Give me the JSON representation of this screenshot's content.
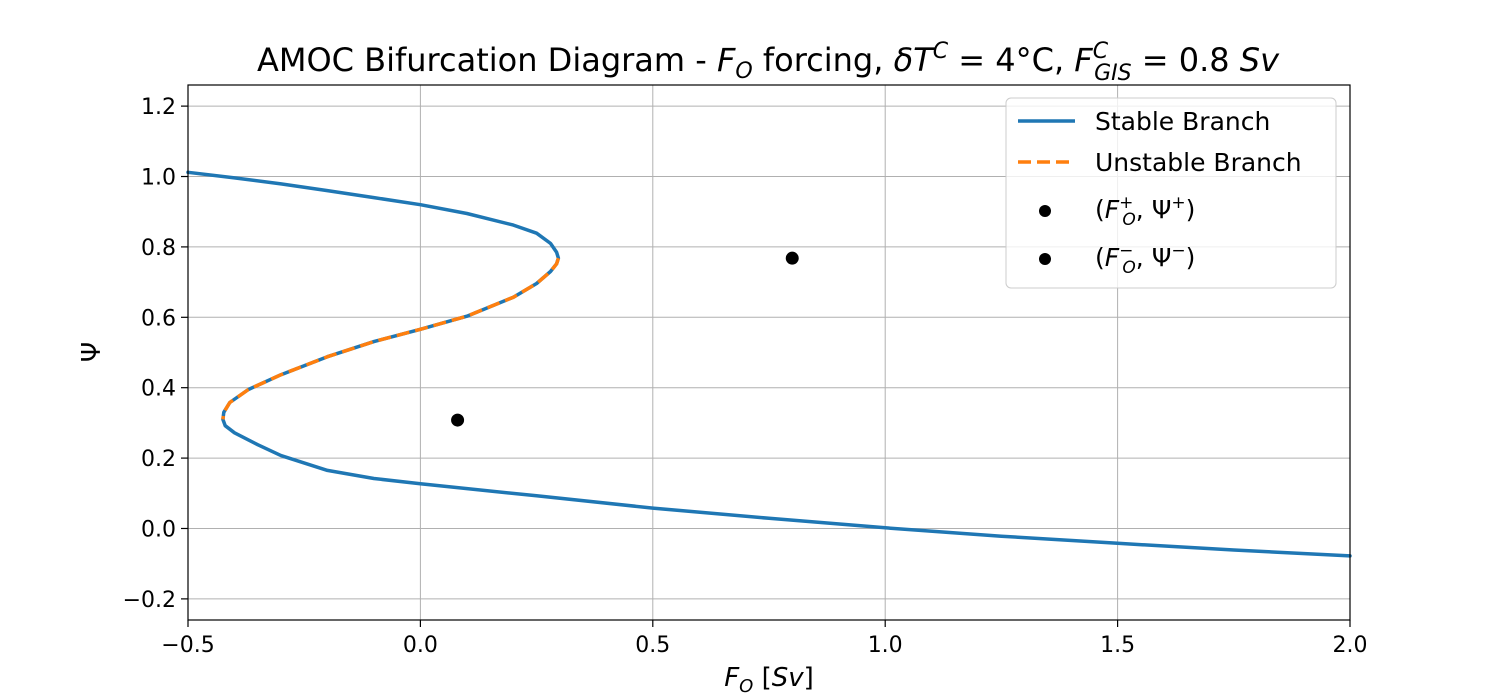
{
  "chart_data": {
    "type": "line",
    "title": "AMOC Bifurcation Diagram - F_O forcing, δT^C = 4°C, F_GIS^C = 0.8 Sv",
    "title_parts": {
      "prefix": "AMOC Bifurcation Diagram - ",
      "var": "F",
      "var_sub": "O",
      "mid": " forcing, ",
      "delta": "δ",
      "dT_var": "T",
      "dT_sup": "C",
      "dT_eq": " = 4°C, ",
      "gis_var": "F",
      "gis_sup": "C",
      "gis_sub": "GIS",
      "gis_eq": " = 0.8 ",
      "unit": "Sv"
    },
    "xlabel": "F_O [Sv]",
    "xlabel_parts": {
      "var": "F",
      "sub": "O",
      "unit_open": " [",
      "unit": "Sv",
      "unit_close": "]"
    },
    "ylabel": "Ψ",
    "xlim": [
      -0.5,
      2.0
    ],
    "ylim": [
      -0.26,
      1.26
    ],
    "xticks": [
      -0.5,
      0.0,
      0.5,
      1.0,
      1.5,
      2.0
    ],
    "xtick_labels": [
      "−0.5",
      "0.0",
      "0.5",
      "1.0",
      "1.5",
      "2.0"
    ],
    "yticks": [
      -0.2,
      0.0,
      0.2,
      0.4,
      0.6,
      0.8,
      1.0,
      1.2
    ],
    "ytick_labels": [
      "−0.2",
      "0.0",
      "0.2",
      "0.4",
      "0.6",
      "0.8",
      "1.0",
      "1.2"
    ],
    "grid": true,
    "legend_position": "top-right",
    "series": [
      {
        "name": "Stable Branch",
        "style": "solid",
        "color": "#1f77b4",
        "points": [
          [
            -0.5,
            1.012
          ],
          [
            -0.4,
            0.996
          ],
          [
            -0.3,
            0.979
          ],
          [
            -0.2,
            0.96
          ],
          [
            -0.1,
            0.94
          ],
          [
            0.0,
            0.92
          ],
          [
            0.1,
            0.895
          ],
          [
            0.2,
            0.862
          ],
          [
            0.25,
            0.839
          ],
          [
            0.28,
            0.81
          ],
          [
            0.293,
            0.785
          ],
          [
            0.297,
            0.768
          ],
          [
            0.293,
            0.752
          ],
          [
            0.28,
            0.73
          ],
          [
            0.25,
            0.696
          ],
          [
            0.2,
            0.657
          ],
          [
            0.1,
            0.603
          ],
          [
            0.0,
            0.566
          ],
          [
            -0.1,
            0.531
          ],
          [
            -0.2,
            0.488
          ],
          [
            -0.3,
            0.437
          ],
          [
            -0.37,
            0.395
          ],
          [
            -0.41,
            0.358
          ],
          [
            -0.423,
            0.33
          ],
          [
            -0.425,
            0.31
          ],
          [
            -0.42,
            0.292
          ],
          [
            -0.4,
            0.272
          ],
          [
            -0.35,
            0.238
          ],
          [
            -0.3,
            0.207
          ],
          [
            -0.2,
            0.165
          ],
          [
            -0.1,
            0.142
          ],
          [
            0.0,
            0.127
          ],
          [
            0.25,
            0.093
          ],
          [
            0.5,
            0.058
          ],
          [
            0.75,
            0.029
          ],
          [
            1.0,
            0.002
          ],
          [
            1.25,
            -0.022
          ],
          [
            1.5,
            -0.042
          ],
          [
            1.75,
            -0.061
          ],
          [
            2.0,
            -0.078
          ]
        ]
      },
      {
        "name": "Unstable Branch",
        "style": "dashed",
        "color": "#ff7f0e",
        "points": [
          [
            0.297,
            0.768
          ],
          [
            0.293,
            0.752
          ],
          [
            0.28,
            0.73
          ],
          [
            0.25,
            0.696
          ],
          [
            0.2,
            0.657
          ],
          [
            0.1,
            0.603
          ],
          [
            0.0,
            0.566
          ],
          [
            -0.1,
            0.531
          ],
          [
            -0.2,
            0.488
          ],
          [
            -0.3,
            0.437
          ],
          [
            -0.37,
            0.395
          ],
          [
            -0.41,
            0.358
          ],
          [
            -0.423,
            0.33
          ],
          [
            -0.425,
            0.31
          ]
        ]
      }
    ],
    "markers": [
      {
        "name": "(F_O^+, Ψ^+)",
        "label_parts": {
          "open": "(",
          "var": "F",
          "sup": "+",
          "sub": "O",
          "comma": ", Ψ",
          "psi_sup": "+",
          "close": ")"
        },
        "x": 0.8,
        "y": 0.768,
        "color": "#000000"
      },
      {
        "name": "(F_O^-, Ψ^-)",
        "label_parts": {
          "open": "(",
          "var": "F",
          "sup": "−",
          "sub": "O",
          "comma": ", Ψ",
          "psi_sup": "−",
          "close": ")"
        },
        "x": 0.08,
        "y": 0.308,
        "color": "#000000"
      }
    ]
  }
}
